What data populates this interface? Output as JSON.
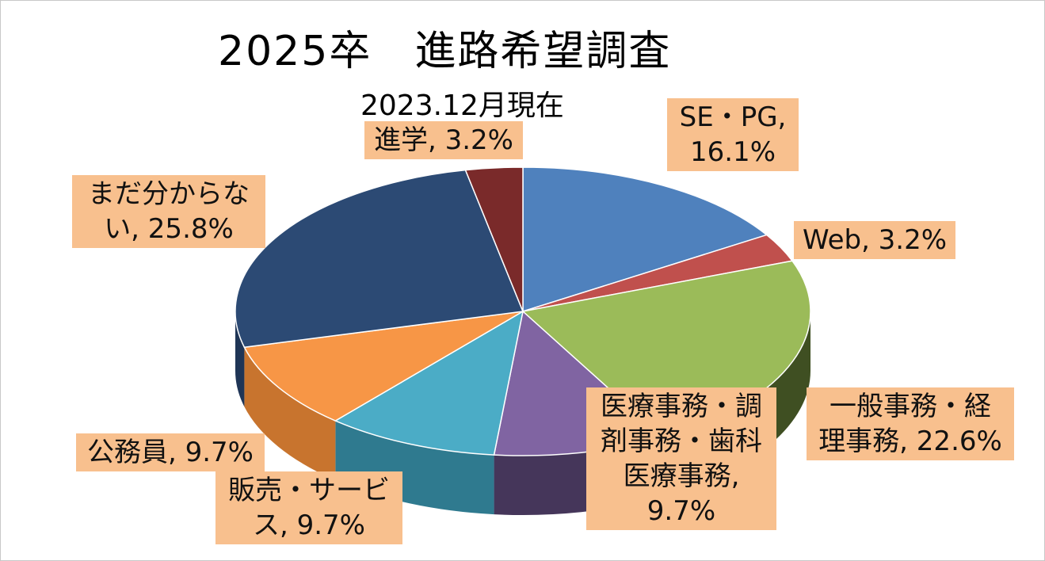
{
  "chart_data": {
    "type": "pie",
    "title": "2025卒　進路希望調査",
    "subtitle": "2023.12月現在",
    "slices": [
      {
        "label": "SE・PG",
        "value": 16.1,
        "display": [
          "SE・PG,",
          "16.1%"
        ],
        "color": "#4f81bd",
        "side": "#34567f"
      },
      {
        "label": "Web",
        "value": 3.2,
        "display": [
          "Web, 3.2%"
        ],
        "color": "#c0504d",
        "side": "#7f3533"
      },
      {
        "label": "一般事務・経理事務",
        "value": 22.6,
        "display": [
          "一般事務・経",
          "理事務, 22.6%"
        ],
        "color": "#9bbb59",
        "side": "#3f4f22"
      },
      {
        "label": "医療事務・調剤事務・歯科医療事務",
        "value": 9.7,
        "display": [
          "医療事務・調",
          "剤事務・歯科",
          "医療事務,",
          "9.7%"
        ],
        "color": "#8064a2",
        "side": "#45365a"
      },
      {
        "label": "販売・サービス",
        "value": 9.7,
        "display": [
          "販売・サービ",
          "ス, 9.7%"
        ],
        "color": "#4bacc6",
        "side": "#2f7a8f"
      },
      {
        "label": "公務員",
        "value": 9.7,
        "display": [
          "公務員, 9.7%"
        ],
        "color": "#f79646",
        "side": "#c8742e"
      },
      {
        "label": "まだ分からない",
        "value": 25.8,
        "display": [
          "まだ分からな",
          "い, 25.8%"
        ],
        "color": "#2c4a74",
        "side": "#1f3556"
      },
      {
        "label": "進学",
        "value": 3.2,
        "display": [
          "進学, 3.2%"
        ],
        "color": "#7a2a2a",
        "side": "#4f1b1b"
      }
    ],
    "unit": "%",
    "legend": "none",
    "data_labels": "category, percentage"
  }
}
